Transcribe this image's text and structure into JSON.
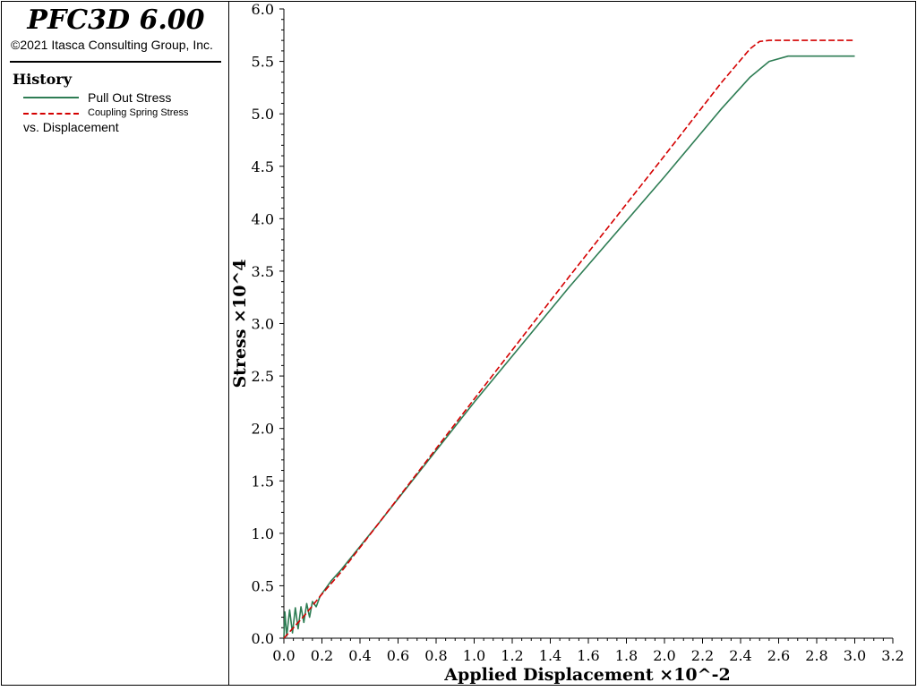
{
  "sidebar": {
    "app_title": "PFC3D 6.00",
    "copyright": "©2021 Itasca Consulting Group, Inc.",
    "history_title": "History",
    "legend": [
      {
        "label": "Pull Out Stress",
        "color": "#2e7d54",
        "style": "solid"
      },
      {
        "label": "Coupling Spring Stress",
        "color": "#d40000",
        "style": "dashed"
      }
    ],
    "vs_label": "vs. Displacement"
  },
  "chart_data": {
    "type": "line",
    "xlabel": "Applied Displacement ×10^-2",
    "ylabel": "Stress ×10^4",
    "xlim": [
      0,
      3.2
    ],
    "ylim": [
      0,
      6.0
    ],
    "x_ticks": [
      "0.0",
      "0.2",
      "0.4",
      "0.6",
      "0.8",
      "1.0",
      "1.2",
      "1.4",
      "1.6",
      "1.8",
      "2.0",
      "2.2",
      "2.4",
      "2.6",
      "2.8",
      "3.0",
      "3.2"
    ],
    "y_ticks": [
      "0.0",
      "0.5",
      "1.0",
      "1.5",
      "2.0",
      "2.5",
      "3.0",
      "3.5",
      "4.0",
      "4.5",
      "5.0",
      "5.5",
      "6.0"
    ],
    "series": [
      {
        "name": "Pull Out Stress",
        "color": "#2e7d54",
        "style": "solid",
        "points": [
          [
            0,
            0.0
          ],
          [
            0.005,
            0.25
          ],
          [
            0.015,
            0.02
          ],
          [
            0.03,
            0.27
          ],
          [
            0.045,
            0.05
          ],
          [
            0.06,
            0.29
          ],
          [
            0.075,
            0.09
          ],
          [
            0.09,
            0.3
          ],
          [
            0.105,
            0.15
          ],
          [
            0.12,
            0.33
          ],
          [
            0.135,
            0.2
          ],
          [
            0.15,
            0.35
          ],
          [
            0.17,
            0.3
          ],
          [
            0.19,
            0.4
          ],
          [
            0.21,
            0.45
          ],
          [
            0.25,
            0.55
          ],
          [
            0.3,
            0.65
          ],
          [
            0.5,
            1.1
          ],
          [
            1.0,
            2.25
          ],
          [
            1.5,
            3.35
          ],
          [
            2.0,
            4.4
          ],
          [
            2.3,
            5.05
          ],
          [
            2.45,
            5.35
          ],
          [
            2.55,
            5.5
          ],
          [
            2.65,
            5.55
          ],
          [
            3.0,
            5.55
          ]
        ]
      },
      {
        "name": "Coupling Spring Stress",
        "color": "#d40000",
        "style": "dashed",
        "points": [
          [
            0,
            0.0
          ],
          [
            0.1,
            0.2
          ],
          [
            0.2,
            0.42
          ],
          [
            0.3,
            0.63
          ],
          [
            0.5,
            1.1
          ],
          [
            1.0,
            2.28
          ],
          [
            1.5,
            3.45
          ],
          [
            2.0,
            4.6
          ],
          [
            2.3,
            5.3
          ],
          [
            2.45,
            5.62
          ],
          [
            2.5,
            5.69
          ],
          [
            2.55,
            5.7
          ],
          [
            3.0,
            5.7
          ]
        ]
      }
    ],
    "grid": false,
    "legend_position": "left-panel"
  }
}
